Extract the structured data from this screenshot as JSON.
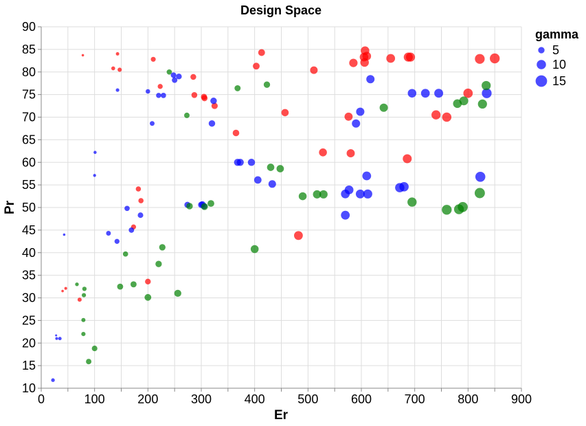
{
  "chart_data": {
    "type": "scatter",
    "title": "Design Space",
    "xlabel": "Er",
    "ylabel": "Pr",
    "xlim": [
      0,
      900
    ],
    "ylim": [
      10,
      90
    ],
    "x_ticks": [
      0,
      100,
      200,
      300,
      400,
      500,
      600,
      700,
      800,
      900
    ],
    "y_ticks": [
      10,
      15,
      20,
      25,
      30,
      35,
      40,
      45,
      50,
      55,
      60,
      65,
      70,
      75,
      80,
      85,
      90
    ],
    "grid": true,
    "size_field": "gamma",
    "size_domain": [
      1,
      18
    ],
    "legend": {
      "title": "gamma",
      "placement": "top-right",
      "entries": [
        "5",
        "10",
        "15"
      ],
      "entry_values": [
        5,
        10,
        15
      ],
      "color": "#0000ff"
    },
    "series": [
      {
        "color": "#ff0000",
        "points": [
          [
            78,
            83.7,
            1.2
          ],
          [
            143,
            84.0,
            1.8
          ],
          [
            135,
            80.8,
            2.2
          ],
          [
            147,
            80.5,
            2.5
          ],
          [
            210,
            82.8,
            3.2
          ],
          [
            223,
            76.8,
            3.3
          ],
          [
            285,
            78.9,
            4.2
          ],
          [
            287,
            74.9,
            4.3
          ],
          [
            305,
            74.5,
            4.6
          ],
          [
            306,
            74.2,
            4.6
          ],
          [
            325,
            72.5,
            4.8
          ],
          [
            365,
            66.5,
            5.3
          ],
          [
            403,
            81.3,
            5.6
          ],
          [
            413,
            84.3,
            5.6
          ],
          [
            457,
            71.0,
            6.4
          ],
          [
            511,
            80.4,
            6.8
          ],
          [
            528,
            62.2,
            7.4
          ],
          [
            576,
            70.1,
            7.8
          ],
          [
            580,
            62.0,
            7.8
          ],
          [
            585,
            82.0,
            8.2
          ],
          [
            605,
            83.3,
            8.6
          ],
          [
            607,
            84.7,
            8.6
          ],
          [
            606,
            82.1,
            8.6
          ],
          [
            610,
            83.5,
            8.8
          ],
          [
            655,
            83.0,
            8.9
          ],
          [
            688,
            83.3,
            9.5
          ],
          [
            692,
            83.3,
            9.5
          ],
          [
            686,
            60.8,
            9.3
          ],
          [
            740,
            70.5,
            9.7
          ],
          [
            760,
            70.0,
            10.0
          ],
          [
            800,
            75.3,
            10.2
          ],
          [
            822,
            82.9,
            11.0
          ],
          [
            850,
            83.0,
            11.2
          ],
          [
            482,
            43.8,
            9.0
          ],
          [
            182,
            54.1,
            3.5
          ],
          [
            187,
            51.5,
            3.5
          ],
          [
            173,
            45.7,
            3.3
          ],
          [
            200,
            33.6,
            4.2
          ],
          [
            72,
            29.6,
            2.4
          ],
          [
            40,
            31.5,
            1.2
          ],
          [
            46,
            32.1,
            1.4
          ]
        ]
      },
      {
        "color": "#0000ff",
        "points": [
          [
            22,
            11.8,
            2.0
          ],
          [
            28,
            21.7,
            1.0
          ],
          [
            29,
            21.0,
            1.4
          ],
          [
            35,
            21.0,
            1.8
          ],
          [
            43,
            44.0,
            1.2
          ],
          [
            100,
            57.1,
            1.5
          ],
          [
            101,
            62.2,
            1.6
          ],
          [
            126,
            44.3,
            3.0
          ],
          [
            142,
            42.5,
            3.3
          ],
          [
            143,
            76.0,
            1.9
          ],
          [
            161,
            49.8,
            3.6
          ],
          [
            169,
            45.0,
            3.7
          ],
          [
            186,
            48.3,
            3.9
          ],
          [
            200,
            75.7,
            2.8
          ],
          [
            208,
            68.6,
            3.0
          ],
          [
            220,
            74.8,
            3.4
          ],
          [
            229,
            74.8,
            3.6
          ],
          [
            248,
            79.3,
            3.9
          ],
          [
            250,
            78.2,
            3.9
          ],
          [
            258,
            79.0,
            4.2
          ],
          [
            274,
            50.6,
            4.6
          ],
          [
            300,
            50.6,
            5.0
          ],
          [
            302,
            50.7,
            5.0
          ],
          [
            305,
            50.3,
            5.0
          ],
          [
            320,
            68.6,
            5.2
          ],
          [
            323,
            73.6,
            5.2
          ],
          [
            368,
            60.0,
            6.0
          ],
          [
            373,
            60.0,
            6.0
          ],
          [
            394,
            60.0,
            6.2
          ],
          [
            406,
            56.1,
            6.5
          ],
          [
            433,
            55.2,
            6.8
          ],
          [
            570,
            48.3,
            9.0
          ],
          [
            570,
            53.0,
            8.9
          ],
          [
            577,
            53.9,
            9.0
          ],
          [
            590,
            68.6,
            8.0
          ],
          [
            598,
            71.2,
            8.0
          ],
          [
            598,
            53.0,
            9.2
          ],
          [
            610,
            57.0,
            9.0
          ],
          [
            612,
            53.0,
            9.5
          ],
          [
            617,
            78.4,
            8.0
          ],
          [
            672,
            54.4,
            10.0
          ],
          [
            680,
            54.6,
            10.1
          ],
          [
            695,
            75.3,
            8.6
          ],
          [
            720,
            75.3,
            8.9
          ],
          [
            745,
            75.3,
            9.2
          ],
          [
            823,
            56.8,
            11.5
          ],
          [
            835,
            75.3,
            11.0
          ]
        ]
      },
      {
        "color": "#008000",
        "points": [
          [
            67,
            33.0,
            2.0
          ],
          [
            79,
            25.1,
            2.4
          ],
          [
            79,
            22.0,
            2.5
          ],
          [
            80,
            30.6,
            2.5
          ],
          [
            81,
            32.0,
            2.6
          ],
          [
            89,
            15.9,
            3.8
          ],
          [
            100,
            18.8,
            3.9
          ],
          [
            148,
            32.5,
            4.5
          ],
          [
            158,
            39.7,
            3.6
          ],
          [
            173,
            33.0,
            4.6
          ],
          [
            200,
            30.1,
            5.5
          ],
          [
            220,
            37.5,
            5.0
          ],
          [
            227,
            41.2,
            5.0
          ],
          [
            240,
            80.0,
            3.6
          ],
          [
            256,
            31.0,
            6.0
          ],
          [
            273,
            70.4,
            3.8
          ],
          [
            278,
            50.3,
            5.2
          ],
          [
            306,
            50.2,
            5.6
          ],
          [
            318,
            50.9,
            5.5
          ],
          [
            368,
            76.4,
            4.6
          ],
          [
            400,
            40.8,
            7.4
          ],
          [
            423,
            77.2,
            5.0
          ],
          [
            430,
            58.9,
            6.4
          ],
          [
            448,
            58.6,
            6.5
          ],
          [
            490,
            52.5,
            7.4
          ],
          [
            517,
            52.9,
            7.9
          ],
          [
            529,
            52.9,
            8.0
          ],
          [
            642,
            72.1,
            8.0
          ],
          [
            695,
            51.2,
            9.8
          ],
          [
            760,
            49.5,
            11.2
          ],
          [
            780,
            73.0,
            8.8
          ],
          [
            783,
            49.6,
            11.2
          ],
          [
            790,
            50.1,
            11.5
          ],
          [
            792,
            73.6,
            9.2
          ],
          [
            822,
            53.2,
            12.0
          ],
          [
            827,
            72.9,
            9.6
          ],
          [
            834,
            77.0,
            9.6
          ]
        ]
      }
    ]
  }
}
